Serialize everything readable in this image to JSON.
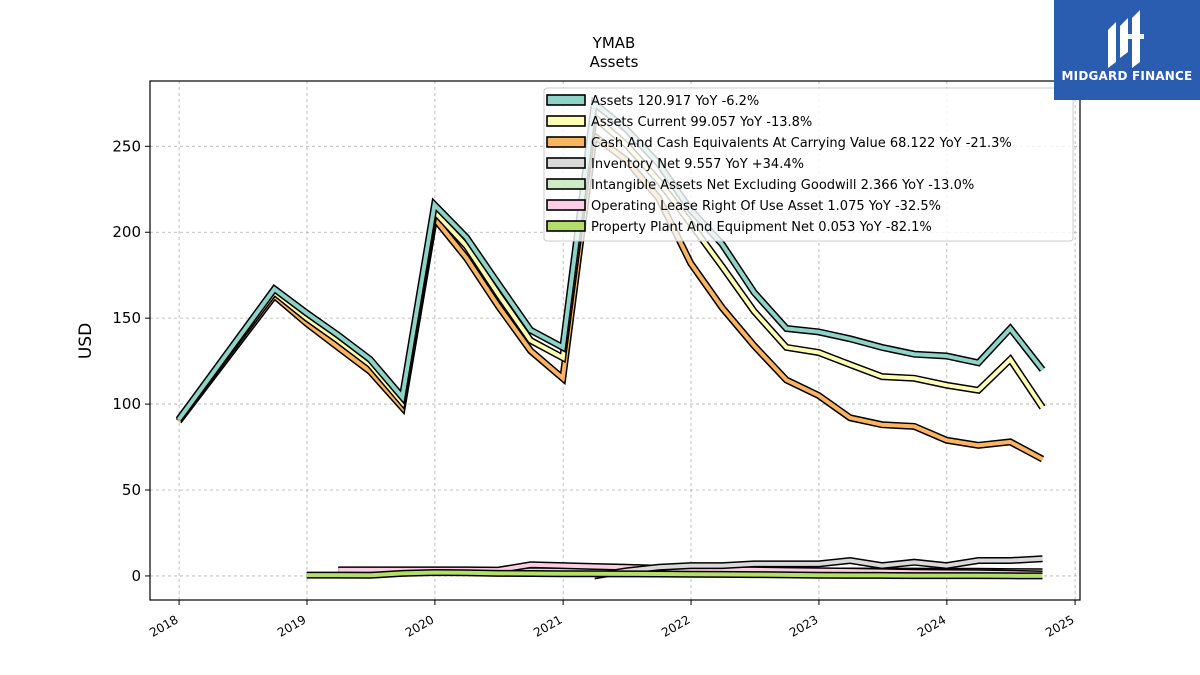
{
  "brand": {
    "name": "MIDGARD FINANCE",
    "logo_icon": "midgard-logo-icon",
    "color": "#2a5db0"
  },
  "chart_data": {
    "type": "line",
    "title": "YMAB",
    "subtitle": "Assets",
    "xlabel": "",
    "ylabel": "USD",
    "xlim": [
      "2017-10-10",
      "2025-01-15"
    ],
    "ylim": [
      -14,
      288
    ],
    "x_ticks": [
      "2018",
      "2019",
      "2020",
      "2021",
      "2022",
      "2023",
      "2024",
      "2025"
    ],
    "y_ticks": [
      0,
      50,
      100,
      150,
      200,
      250
    ],
    "grid": true,
    "legend_position": "top-right",
    "series": [
      {
        "name": "Assets  120.917 YoY -6.2%",
        "color": "#8dd3c7",
        "x": [
          "2017-12-31",
          "2018-09-30",
          "2018-12-31",
          "2019-03-31",
          "2019-06-30",
          "2019-09-30",
          "2019-12-31",
          "2020-03-31",
          "2020-06-30",
          "2020-09-30",
          "2020-12-31",
          "2021-03-31",
          "2021-06-30",
          "2021-09-30",
          "2021-12-31",
          "2022-03-31",
          "2022-06-30",
          "2022-09-30",
          "2022-12-31",
          "2023-03-31",
          "2023-06-30",
          "2023-09-30",
          "2023-12-31",
          "2024-03-31",
          "2024-06-30",
          "2024-09-30"
        ],
        "values": [
          91,
          167,
          153,
          140,
          126,
          104,
          216,
          197,
          170,
          143,
          133,
          275,
          260,
          240,
          213,
          193,
          165,
          144,
          142,
          138,
          133,
          129,
          128,
          124,
          144,
          120
        ]
      },
      {
        "name": "Assets Current  99.057 YoY -13.8%",
        "color": "#ffffb3",
        "x": [
          "2017-12-31",
          "2018-09-30",
          "2018-12-31",
          "2019-03-31",
          "2019-06-30",
          "2019-09-30",
          "2019-12-31",
          "2020-03-31",
          "2020-06-30",
          "2020-09-30",
          "2020-12-31",
          "2021-03-31",
          "2021-06-30",
          "2021-09-30",
          "2021-12-31",
          "2022-03-31",
          "2022-06-30",
          "2022-09-30",
          "2022-12-31",
          "2023-03-31",
          "2023-06-30",
          "2023-09-30",
          "2023-12-31",
          "2024-03-31",
          "2024-06-30",
          "2024-09-30"
        ],
        "values": [
          91,
          165,
          150,
          137,
          123,
          101,
          212,
          192,
          164,
          137,
          127,
          267,
          251,
          230,
          205,
          180,
          154,
          133,
          130,
          123,
          116,
          115,
          111,
          108,
          126,
          98
        ]
      },
      {
        "name": "Cash And Cash Equivalents At Carrying Value  68.122 YoY -21.3%",
        "color": "#fdb462",
        "x": [
          "2017-12-31",
          "2018-09-30",
          "2018-12-31",
          "2019-03-31",
          "2019-06-30",
          "2019-09-30",
          "2019-12-31",
          "2020-03-31",
          "2020-06-30",
          "2020-09-30",
          "2020-12-31",
          "2021-03-31",
          "2021-06-30",
          "2021-09-30",
          "2021-12-31",
          "2022-03-31",
          "2022-06-30",
          "2022-09-30",
          "2022-12-31",
          "2023-03-31",
          "2023-06-30",
          "2023-09-30",
          "2023-12-31",
          "2024-03-31",
          "2024-06-30",
          "2024-09-30"
        ],
        "values": [
          90,
          163,
          147,
          133,
          119,
          98,
          208,
          185,
          157,
          131,
          115,
          256,
          242,
          220,
          182,
          156,
          134,
          114,
          105,
          92,
          88,
          87,
          79,
          76,
          78,
          68
        ]
      },
      {
        "name": "Inventory Net  9.557 YoY +34.4%",
        "color": "#d9d9d9",
        "x": [
          "2021-03-31",
          "2021-06-30",
          "2021-09-30",
          "2021-12-31",
          "2022-03-31",
          "2022-06-30",
          "2022-09-30",
          "2022-12-31",
          "2023-03-31",
          "2023-06-30",
          "2023-09-30",
          "2023-12-31",
          "2024-03-31",
          "2024-06-30",
          "2024-09-30"
        ],
        "values": [
          0,
          3,
          5,
          6,
          6,
          7,
          7,
          7,
          9,
          6,
          8,
          6,
          9,
          9,
          10
        ]
      },
      {
        "name": "Intangible Assets Net Excluding Goodwill  2.366 YoY -13.0%",
        "color": "#ccebc5",
        "x": [
          "2019-03-31",
          "2019-06-30",
          "2019-09-30",
          "2019-12-31",
          "2020-03-31",
          "2020-06-30",
          "2020-09-30",
          "2020-12-31",
          "2021-03-31",
          "2021-06-30",
          "2021-09-30",
          "2021-12-31",
          "2022-03-31",
          "2022-06-30",
          "2022-09-30",
          "2022-12-31",
          "2023-03-31",
          "2023-06-30",
          "2023-09-30",
          "2023-12-31",
          "2024-03-31",
          "2024-06-30",
          "2024-09-30"
        ],
        "values": [
          3.0,
          3.0,
          3.0,
          3.0,
          3.0,
          3.0,
          3.0,
          3.0,
          3.0,
          3.0,
          3.0,
          3.0,
          3.0,
          3.0,
          3.0,
          2.9,
          2.9,
          2.8,
          2.8,
          2.7,
          2.7,
          2.5,
          2.4
        ]
      },
      {
        "name": "Operating Lease Right Of Use Asset  1.075 YoY -32.5%",
        "color": "#fccde5",
        "x": [
          "2019-03-31",
          "2019-06-30",
          "2019-09-30",
          "2019-12-31",
          "2020-03-31",
          "2020-06-30",
          "2020-09-30",
          "2020-12-31",
          "2021-03-31",
          "2021-06-30",
          "2021-09-30",
          "2021-12-31",
          "2022-03-31",
          "2022-06-30",
          "2022-09-30",
          "2022-12-31",
          "2023-03-31",
          "2023-06-30",
          "2023-09-30",
          "2023-12-31",
          "2024-03-31",
          "2024-06-30",
          "2024-09-30"
        ],
        "values": [
          3.5,
          3.5,
          3.5,
          3.5,
          3.5,
          3.4,
          6.5,
          6.0,
          5.5,
          5.0,
          4.5,
          4.0,
          3.8,
          3.5,
          3.2,
          3.0,
          2.8,
          2.5,
          2.2,
          2.0,
          1.8,
          1.6,
          1.1
        ]
      },
      {
        "name": "Property Plant And Equipment Net  0.053 YoY -82.1%",
        "color": "#b3de69",
        "x": [
          "2018-12-31",
          "2019-03-31",
          "2019-06-30",
          "2019-09-30",
          "2019-12-31",
          "2020-03-31",
          "2020-06-30",
          "2020-09-30",
          "2020-12-31",
          "2021-03-31",
          "2021-06-30",
          "2021-09-30",
          "2021-12-31",
          "2022-03-31",
          "2022-06-30",
          "2022-09-30",
          "2022-12-31",
          "2023-03-31",
          "2023-06-30",
          "2023-09-30",
          "2023-12-31",
          "2024-03-31",
          "2024-06-30",
          "2024-09-30"
        ],
        "values": [
          0.5,
          0.5,
          0.4,
          1.5,
          2.0,
          1.8,
          1.5,
          1.4,
          1.3,
          1.3,
          1.2,
          1.1,
          1.0,
          0.9,
          0.8,
          0.6,
          0.4,
          0.3,
          0.3,
          0.2,
          0.2,
          0.2,
          0.1,
          0.05
        ]
      }
    ]
  }
}
